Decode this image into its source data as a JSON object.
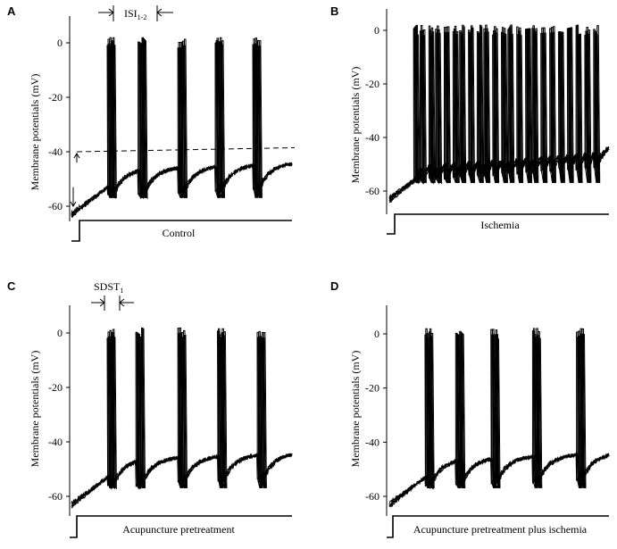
{
  "chart_data": [
    {
      "type": "line",
      "panel": "A",
      "ylabel": "Membrane potentials (mV)",
      "condition": "Control",
      "ylim": [
        -65,
        5
      ],
      "yticks": [
        0,
        -20,
        -40,
        -60
      ],
      "ytick_labels": [
        "0",
        "-20",
        "-40",
        "-60"
      ],
      "baseline_mV": -60,
      "spike_peak_mV": 0,
      "threshold_mV": -40,
      "spikes_per_burst": 2,
      "burst_times_rel": [
        0.17,
        0.31,
        0.49,
        0.66,
        0.83
      ],
      "annotation": "ISI1-2",
      "annotation_main": "ISI",
      "annotation_sub": "1-2",
      "has_threshold_line": true
    },
    {
      "type": "line",
      "panel": "B",
      "ylabel": "Membrane potentials (mV)",
      "condition": "Ischemia",
      "ylim": [
        -65,
        5
      ],
      "yticks": [
        0,
        -20,
        -40,
        -60
      ],
      "ytick_labels": [
        "0",
        "-20",
        "-40",
        "-60"
      ],
      "baseline_mV": -60,
      "spike_peak_mV": 0,
      "spike_times_rel": [
        0.12,
        0.15,
        0.19,
        0.22,
        0.26,
        0.3,
        0.33,
        0.37,
        0.41,
        0.44,
        0.48,
        0.52,
        0.55,
        0.59,
        0.63,
        0.66,
        0.7,
        0.74,
        0.78,
        0.82,
        0.86,
        0.9,
        0.94
      ]
    },
    {
      "type": "line",
      "panel": "C",
      "ylabel": "Membrane potentials (mV)",
      "condition": "Acupuncture pretreatment",
      "ylim": [
        -65,
        5
      ],
      "yticks": [
        0,
        -20,
        -40,
        -60
      ],
      "ytick_labels": [
        "0",
        "-20",
        "-40",
        "-60"
      ],
      "baseline_mV": -60,
      "spike_peak_mV": 0,
      "spikes_per_burst": 2,
      "burst_times_rel": [
        0.17,
        0.3,
        0.49,
        0.67,
        0.85
      ],
      "annotation": "SDST1",
      "annotation_main": "SDST",
      "annotation_sub": "1"
    },
    {
      "type": "line",
      "panel": "D",
      "ylabel": "Membrane potentials (mV)",
      "condition": "Acupuncture pretreatment plus ischemia",
      "ylim": [
        -65,
        5
      ],
      "yticks": [
        0,
        -20,
        -40,
        -60
      ],
      "ytick_labels": [
        "0",
        "-20",
        "-40",
        "-60"
      ],
      "baseline_mV": -60,
      "spike_peak_mV": 0,
      "spikes_per_burst": 2,
      "burst_times_rel": [
        0.17,
        0.31,
        0.47,
        0.66,
        0.86
      ]
    }
  ]
}
